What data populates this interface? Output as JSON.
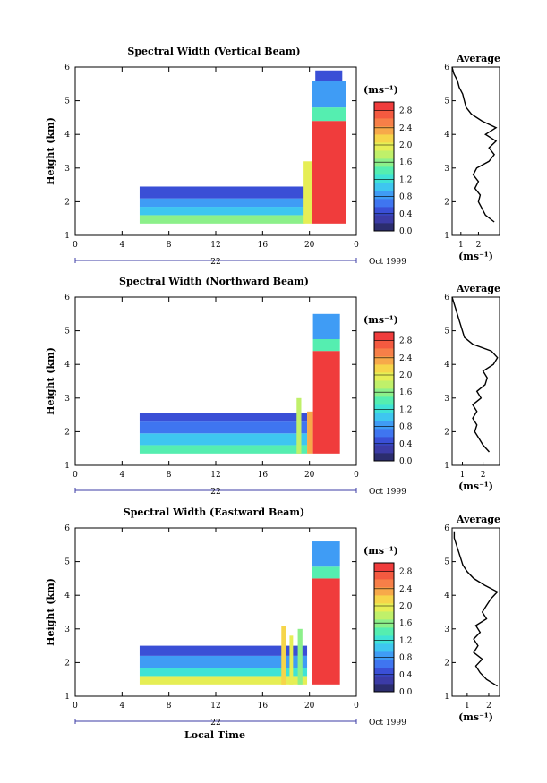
{
  "figure": {
    "xlabel": "Local Time",
    "date_label": "Oct 1999",
    "day_label": "22",
    "ylabel": "Height (km)",
    "unit_label": "(ms⁻¹)",
    "avg_title": "Average"
  },
  "colors": {
    "scale": [
      "#2b2d6e",
      "#3b3ba6",
      "#3a4fd6",
      "#3f75f0",
      "#3f9cf5",
      "#3ec6f0",
      "#3fe3d6",
      "#55eeb0",
      "#8cf08a",
      "#c0f06a",
      "#e6ee55",
      "#f6d54a",
      "#f7a94a",
      "#f77f48",
      "#f45a40",
      "#f03c3c"
    ]
  },
  "chart_data": [
    {
      "type": "heatmap",
      "title": "Spectral Width (Vertical Beam)",
      "xlabel": "Local Time",
      "ylabel": "Height (km)",
      "x_ticks": [
        "0",
        "4",
        "8",
        "12",
        "16",
        "20",
        "0"
      ],
      "y_ticks": [
        "1",
        "2",
        "3",
        "4",
        "5",
        "6"
      ],
      "xlim": [
        0,
        24
      ],
      "ylim": [
        1,
        6
      ],
      "colorbar": {
        "label": "(ms⁻¹)",
        "ticks": [
          "2.8",
          "2.4",
          "2.0",
          "1.6",
          "1.2",
          "0.8",
          "0.4",
          "0.0"
        ],
        "range": [
          0.0,
          3.0
        ]
      },
      "regions": [
        {
          "t": [
            5.5,
            19.6
          ],
          "h": [
            1.35,
            1.6
          ],
          "v": 1.5
        },
        {
          "t": [
            5.5,
            19.6
          ],
          "h": [
            1.6,
            1.85
          ],
          "v": 1.1
        },
        {
          "t": [
            5.5,
            19.6
          ],
          "h": [
            1.85,
            2.1
          ],
          "v": 0.75
        },
        {
          "t": [
            5.5,
            19.6
          ],
          "h": [
            2.1,
            2.45
          ],
          "v": 0.5
        },
        {
          "t": [
            19.5,
            20.2
          ],
          "h": [
            1.35,
            3.2
          ],
          "v": 2.0
        },
        {
          "t": [
            20.2,
            23.1
          ],
          "h": [
            1.35,
            4.4
          ],
          "v": 2.9
        },
        {
          "t": [
            20.2,
            23.1
          ],
          "h": [
            4.4,
            4.8
          ],
          "v": 1.4
        },
        {
          "t": [
            20.2,
            23.1
          ],
          "h": [
            4.8,
            5.6
          ],
          "v": 0.9
        },
        {
          "t": [
            20.5,
            22.8
          ],
          "h": [
            5.6,
            5.9
          ],
          "v": 0.5
        }
      ],
      "average": {
        "xlim": [
          0.5,
          3.2
        ],
        "x_ticks": [
          "1",
          "2"
        ],
        "xlabel": "(ms⁻¹)",
        "h": [
          1.4,
          1.6,
          1.8,
          2.0,
          2.2,
          2.4,
          2.6,
          2.8,
          3.0,
          3.2,
          3.4,
          3.6,
          3.8,
          4.0,
          4.2,
          4.4,
          4.6,
          4.8,
          5.0,
          5.2,
          5.4,
          5.6,
          5.8,
          6.0
        ],
        "v": [
          2.9,
          2.4,
          2.2,
          2.0,
          2.1,
          1.8,
          2.0,
          1.7,
          1.9,
          2.6,
          2.9,
          2.6,
          3.0,
          2.4,
          3.0,
          2.2,
          1.6,
          1.3,
          1.2,
          1.1,
          0.9,
          0.8,
          0.6,
          0.5
        ]
      }
    },
    {
      "type": "heatmap",
      "title": "Spectral Width (Northward Beam)",
      "xlabel": "Local Time",
      "ylabel": "Height (km)",
      "x_ticks": [
        "0",
        "4",
        "8",
        "12",
        "16",
        "20",
        "0"
      ],
      "y_ticks": [
        "1",
        "2",
        "3",
        "4",
        "5",
        "6"
      ],
      "xlim": [
        0,
        24
      ],
      "ylim": [
        1,
        6
      ],
      "colorbar": {
        "label": "(ms⁻¹)",
        "ticks": [
          "2.8",
          "2.4",
          "2.0",
          "1.6",
          "1.2",
          "0.8",
          "0.4",
          "0.0"
        ],
        "range": [
          0.0,
          3.0
        ]
      },
      "regions": [
        {
          "t": [
            5.5,
            19.8
          ],
          "h": [
            1.35,
            1.6
          ],
          "v": 1.4
        },
        {
          "t": [
            5.5,
            19.8
          ],
          "h": [
            1.6,
            1.95
          ],
          "v": 1.0
        },
        {
          "t": [
            5.5,
            19.8
          ],
          "h": [
            1.95,
            2.3
          ],
          "v": 0.7
        },
        {
          "t": [
            5.5,
            19.8
          ],
          "h": [
            2.3,
            2.55
          ],
          "v": 0.45
        },
        {
          "t": [
            18.9,
            19.3
          ],
          "h": [
            1.35,
            3.0
          ],
          "v": 1.8
        },
        {
          "t": [
            19.8,
            20.3
          ],
          "h": [
            1.35,
            2.6
          ],
          "v": 2.4
        },
        {
          "t": [
            20.3,
            22.6
          ],
          "h": [
            1.35,
            4.4
          ],
          "v": 2.9
        },
        {
          "t": [
            20.3,
            22.6
          ],
          "h": [
            4.4,
            4.75
          ],
          "v": 1.4
        },
        {
          "t": [
            20.3,
            22.6
          ],
          "h": [
            4.75,
            5.5
          ],
          "v": 0.8
        }
      ],
      "average": {
        "xlim": [
          0.5,
          2.8
        ],
        "x_ticks": [
          "1",
          "2"
        ],
        "xlabel": "(ms⁻¹)",
        "h": [
          1.4,
          1.6,
          1.8,
          2.0,
          2.2,
          2.4,
          2.6,
          2.8,
          3.0,
          3.2,
          3.4,
          3.6,
          3.8,
          4.0,
          4.2,
          4.4,
          4.6,
          4.8,
          5.0,
          5.2,
          5.4,
          5.6,
          5.8,
          6.0
        ],
        "v": [
          2.3,
          2.0,
          1.8,
          1.6,
          1.7,
          1.5,
          1.7,
          1.5,
          1.9,
          1.7,
          2.1,
          2.2,
          2.0,
          2.5,
          2.7,
          2.4,
          1.5,
          1.1,
          1.0,
          0.9,
          0.8,
          0.7,
          0.6,
          0.5
        ]
      }
    },
    {
      "type": "heatmap",
      "title": "Spectral Width (Eastward Beam)",
      "xlabel": "Local Time",
      "ylabel": "Height (km)",
      "x_ticks": [
        "0",
        "4",
        "8",
        "12",
        "16",
        "20",
        "0"
      ],
      "y_ticks": [
        "1",
        "2",
        "3",
        "4",
        "5",
        "6"
      ],
      "xlim": [
        0,
        24
      ],
      "ylim": [
        1,
        6
      ],
      "colorbar": {
        "label": "(ms⁻¹)",
        "ticks": [
          "2.8",
          "2.4",
          "2.0",
          "1.6",
          "1.2",
          "0.8",
          "0.4",
          "0.0"
        ],
        "range": [
          0.0,
          3.0
        ]
      },
      "regions": [
        {
          "t": [
            5.5,
            19.8
          ],
          "h": [
            1.35,
            1.6
          ],
          "v": 1.9
        },
        {
          "t": [
            5.5,
            19.8
          ],
          "h": [
            1.6,
            1.85
          ],
          "v": 1.3
        },
        {
          "t": [
            5.5,
            19.8
          ],
          "h": [
            1.85,
            2.2
          ],
          "v": 0.8
        },
        {
          "t": [
            5.5,
            19.8
          ],
          "h": [
            2.2,
            2.5
          ],
          "v": 0.45
        },
        {
          "t": [
            17.6,
            18.0
          ],
          "h": [
            1.35,
            3.1
          ],
          "v": 2.2
        },
        {
          "t": [
            18.3,
            18.6
          ],
          "h": [
            1.35,
            2.8
          ],
          "v": 1.9
        },
        {
          "t": [
            19.0,
            19.4
          ],
          "h": [
            1.35,
            3.0
          ],
          "v": 1.6
        },
        {
          "t": [
            20.2,
            22.6
          ],
          "h": [
            1.35,
            4.5
          ],
          "v": 2.9
        },
        {
          "t": [
            20.2,
            22.6
          ],
          "h": [
            4.5,
            4.85
          ],
          "v": 1.4
        },
        {
          "t": [
            20.2,
            22.6
          ],
          "h": [
            4.85,
            5.6
          ],
          "v": 0.8
        }
      ],
      "average": {
        "xlim": [
          0.3,
          2.5
        ],
        "x_ticks": [
          "1",
          "2"
        ],
        "xlabel": "(ms⁻¹)",
        "h": [
          1.3,
          1.5,
          1.7,
          1.9,
          2.1,
          2.3,
          2.5,
          2.7,
          2.9,
          3.1,
          3.3,
          3.5,
          3.7,
          3.9,
          4.1,
          4.3,
          4.5,
          4.7,
          4.9,
          5.1,
          5.3,
          5.5,
          5.7,
          5.9
        ],
        "v": [
          2.4,
          1.9,
          1.6,
          1.4,
          1.7,
          1.3,
          1.5,
          1.3,
          1.6,
          1.4,
          1.9,
          1.7,
          1.9,
          2.1,
          2.4,
          1.8,
          1.3,
          1.0,
          0.8,
          0.7,
          0.6,
          0.5,
          0.4,
          0.4
        ]
      }
    }
  ]
}
